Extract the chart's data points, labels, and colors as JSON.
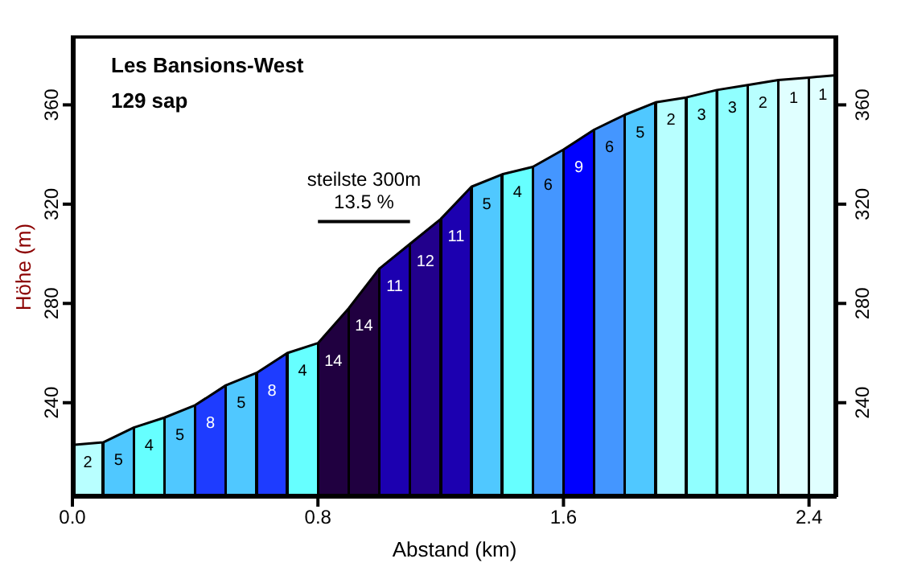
{
  "chart_data": {
    "type": "area",
    "title": "Les Bansions-West",
    "subtitle": "129 sap",
    "xlabel": "Abstand (km)",
    "ylabel": "Höhe (m)",
    "x": [
      0,
      0.1,
      0.2,
      0.3,
      0.4,
      0.5,
      0.6,
      0.7,
      0.8,
      0.9,
      1.0,
      1.1,
      1.2,
      1.3,
      1.4,
      1.5,
      1.6,
      1.7,
      1.8,
      1.9,
      2.0,
      2.1,
      2.2,
      2.3,
      2.4,
      2.49
    ],
    "series": [
      {
        "values": [
          223,
          224,
          230,
          234,
          239,
          247,
          252,
          260,
          264,
          278,
          294,
          304,
          314,
          327,
          332,
          335,
          342,
          350,
          356,
          361,
          363,
          366,
          368,
          370,
          371,
          372
        ],
        "colors": [
          "#b8ffff",
          "#50c8ff",
          "#66ffff",
          "#50c8ff",
          "#1e3cff",
          "#50c8ff",
          "#1e3cff",
          "#66ffff",
          "#200040",
          "#200040",
          "#1c00b0",
          "#22008c",
          "#1c00b0",
          "#50c8ff",
          "#66ffff",
          "#4496ff",
          "#0000ff",
          "#4496ff",
          "#50c8ff",
          "#b8ffff",
          "#90ffff",
          "#90ffff",
          "#b8ffff",
          "#e0ffff",
          "#e0ffff",
          "#e0ffff"
        ]
      },
      {
        "type": "line",
        "x": [
          0.8,
          1.1
        ],
        "values": [
          313,
          313
        ],
        "color": "#000000"
      }
    ],
    "xlim": [
      0,
      2.49
    ],
    "xticks": [
      {
        "value": 0,
        "label": "0.0"
      },
      {
        "value": 0.8,
        "label": "0.8"
      },
      {
        "value": 1.6,
        "label": "1.6"
      },
      {
        "value": 2.4,
        "label": "2.4"
      }
    ],
    "ylim": [
      202,
      388
    ],
    "yticks": [
      240,
      280,
      320,
      360
    ],
    "y2lim": [
      202,
      388
    ],
    "y2ticks": [
      240,
      280,
      320,
      360
    ],
    "annotations": [
      {
        "text": "steilste 300m\n13.5 %",
        "x": 0.95,
        "y": 313
      },
      "2",
      "5",
      "4",
      "5",
      "8",
      "5",
      "8",
      "4",
      "14",
      "14",
      "11",
      "12",
      "11",
      "5",
      "4",
      "6",
      "9",
      "6",
      "5",
      "2",
      "3",
      "3",
      "2",
      "1",
      "1"
    ]
  }
}
